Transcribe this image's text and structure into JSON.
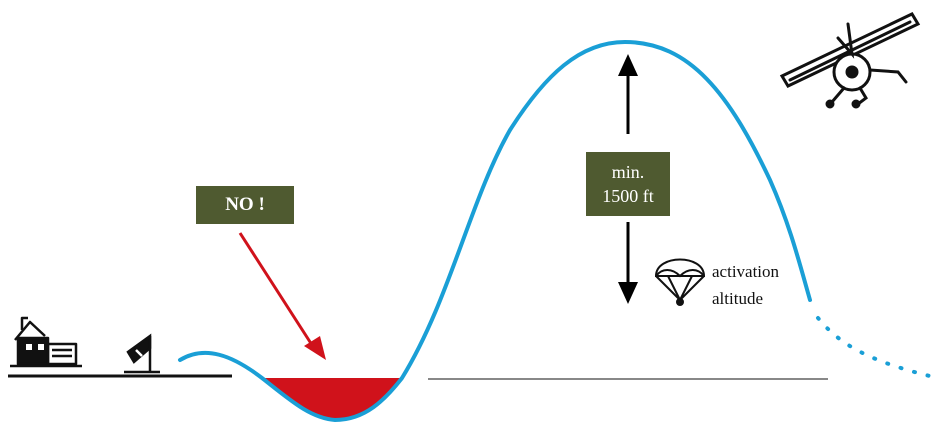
{
  "warning": {
    "text": "NO !",
    "color": "#d0121b"
  },
  "altitude_label": {
    "line1": "min.",
    "line2": "1500 ft"
  },
  "activation": {
    "line1": "activation",
    "line2": "altitude"
  },
  "colors": {
    "flight_path": "#1a9fd6",
    "danger_zone": "#d0121b",
    "label_box": "#4f5a30",
    "ground": "#888888"
  },
  "icons": [
    "house-icon",
    "windsock-icon",
    "parachute-icon",
    "aircraft-icon",
    "arrow-up-icon",
    "arrow-down-icon",
    "warning-arrow-icon"
  ]
}
